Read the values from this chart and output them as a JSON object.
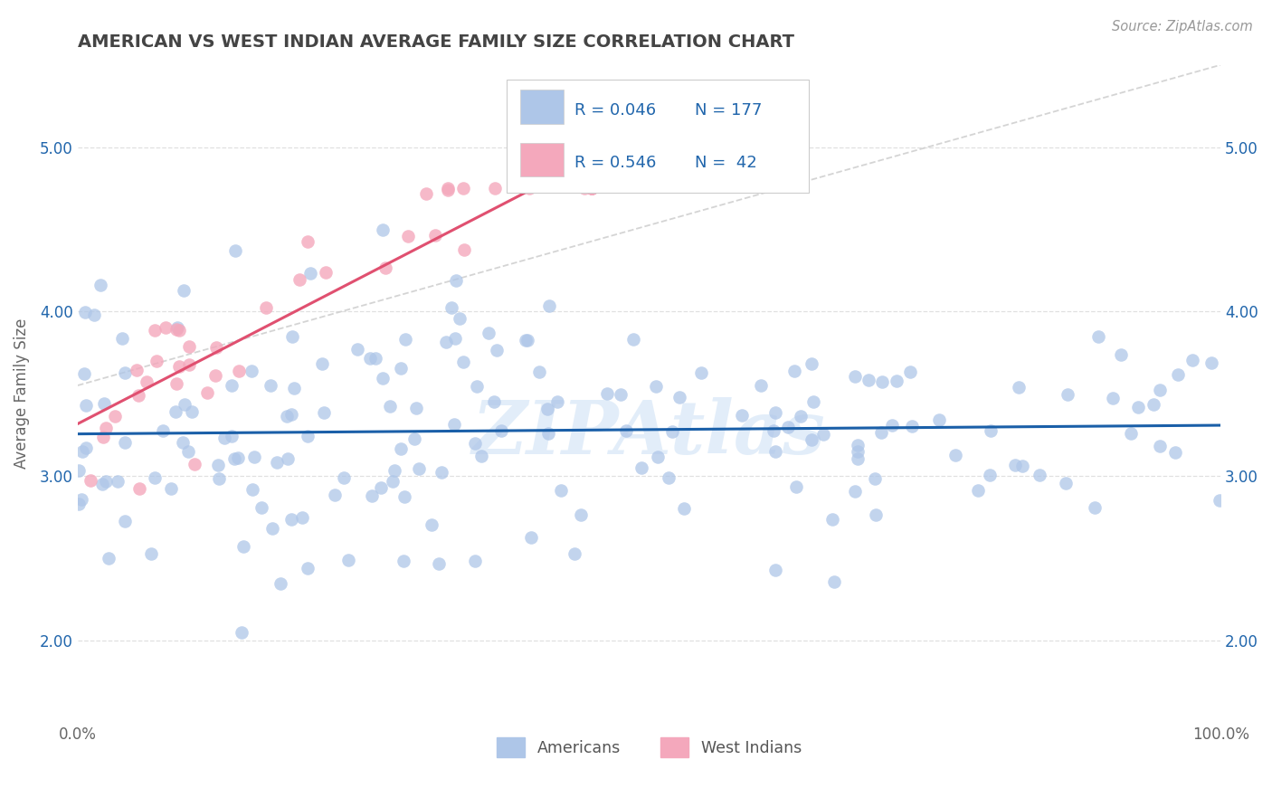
{
  "title": "AMERICAN VS WEST INDIAN AVERAGE FAMILY SIZE CORRELATION CHART",
  "source": "Source: ZipAtlas.com",
  "ylabel": "Average Family Size",
  "xlim": [
    0.0,
    1.0
  ],
  "ylim": [
    1.5,
    5.5
  ],
  "yticks": [
    2.0,
    3.0,
    4.0,
    5.0
  ],
  "yticklabels": [
    "2.00",
    "3.00",
    "4.00",
    "5.00"
  ],
  "xticklabels": [
    "0.0%",
    "100.0%"
  ],
  "legend_r_american": "R = 0.046",
  "legend_n_american": "N = 177",
  "legend_r_westindian": "R = 0.546",
  "legend_n_westindian": "N =  42",
  "american_color": "#aec6e8",
  "westindian_color": "#f4a8bc",
  "american_line_color": "#1a5fa8",
  "westindian_line_color": "#e05070",
  "diagonal_color": "#d0d0d0",
  "text_blue": "#2166ac",
  "background_color": "#ffffff",
  "watermark_color": "#b8d4f0",
  "n_american": 177,
  "n_westindian": 42,
  "am_seed": 12345,
  "wi_seed": 9876
}
